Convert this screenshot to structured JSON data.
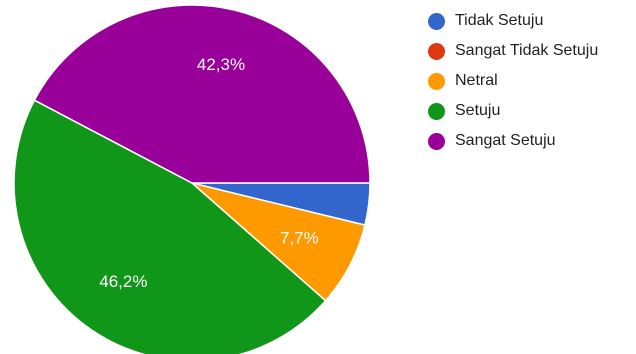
{
  "chart_data": {
    "type": "pie",
    "categories": [
      "Tidak Setuju",
      "Sangat Tidak Setuju",
      "Netral",
      "Setuju",
      "Sangat Setuju"
    ],
    "values": [
      3.8,
      0,
      7.7,
      46.2,
      42.3
    ],
    "value_labels": [
      "",
      "",
      "7,7%",
      "46,2%",
      "42,3%"
    ],
    "colors": [
      "#3366cc",
      "#dc3912",
      "#ff9900",
      "#109618",
      "#990099"
    ],
    "legend_position": "right",
    "start_angle": "3 o'clock, clockwise"
  }
}
